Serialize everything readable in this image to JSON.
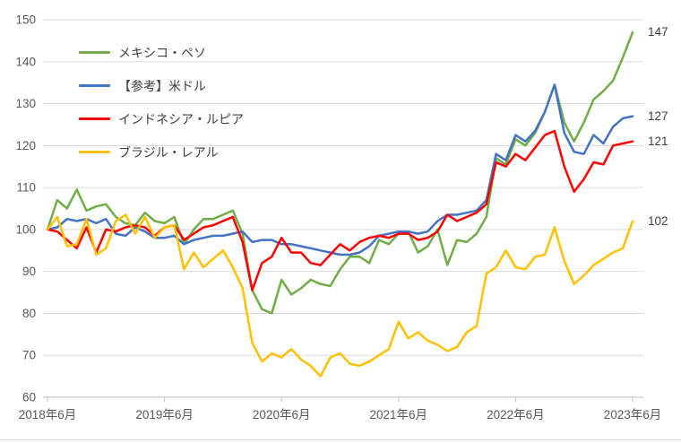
{
  "chart_data": {
    "type": "line",
    "description": "Currency index line chart (indexed to 100 at 2018-06), monthly points from 2018-06 to 2023-06",
    "x_tick_labels": [
      "2018年6月",
      "2019年6月",
      "2020年6月",
      "2021年6月",
      "2022年6月",
      "2023年6月"
    ],
    "x_interval": "monthly",
    "points_per_series": 61,
    "y_ticks": [
      60,
      70,
      80,
      90,
      100,
      110,
      120,
      130,
      140,
      150
    ],
    "ylim": [
      60,
      150
    ],
    "grid": "horizontal",
    "legend_position": "top-left-inside",
    "series": [
      {
        "name": "メキシコ・ペソ",
        "color": "#70AD47",
        "end_label": "147",
        "values": [
          100,
          107,
          105,
          109.5,
          104.5,
          105.5,
          106,
          103,
          101.5,
          101,
          104,
          102,
          101.5,
          103,
          96.5,
          100,
          102.5,
          102.5,
          103.5,
          104.5,
          99,
          85.5,
          81,
          80,
          88,
          84.5,
          86,
          88,
          87,
          86.5,
          90.5,
          93.5,
          93.5,
          92,
          97.5,
          96.5,
          99,
          99.5,
          94.5,
          96,
          100,
          91.5,
          97.5,
          97,
          99,
          103,
          117,
          115.5,
          121.5,
          120,
          123,
          128,
          134.5,
          125.5,
          121,
          125.5,
          131,
          133,
          135.5,
          141,
          147
        ]
      },
      {
        "name": "【参考】米ドル",
        "color": "#4472C4",
        "end_label": "127",
        "values": [
          100,
          100.5,
          102.5,
          102,
          102.5,
          101.5,
          102.5,
          99,
          98.5,
          100.5,
          99.5,
          98,
          98,
          98.5,
          96.5,
          97.5,
          98,
          98.5,
          98.5,
          99,
          99.5,
          97,
          97.5,
          97.5,
          96.5,
          96.5,
          96,
          95.5,
          95,
          94.5,
          94,
          94,
          94.5,
          96,
          98.5,
          99,
          99.5,
          99.5,
          99,
          99.5,
          102,
          103.5,
          103.5,
          104,
          104.5,
          107,
          118,
          116.5,
          122.5,
          121,
          123.5,
          128,
          134.5,
          123,
          118.5,
          118,
          122.5,
          120.5,
          124.5,
          126.5,
          127
        ]
      },
      {
        "name": "インドネシア・ルピア",
        "color": "#FF0000",
        "end_label": "121",
        "values": [
          100,
          99.5,
          97.5,
          95.5,
          100.5,
          94.5,
          100,
          99.5,
          100.5,
          101,
          100.5,
          98.5,
          100.5,
          101,
          97.5,
          99,
          100.5,
          101,
          102,
          103,
          97,
          85.5,
          92,
          93.5,
          98,
          94.5,
          94.5,
          92,
          91.5,
          94,
          96.5,
          95,
          97,
          98,
          98.5,
          98,
          99,
          99,
          97.5,
          98,
          99.5,
          103.5,
          102,
          103,
          104,
          106,
          116,
          115,
          118,
          116.5,
          119.5,
          122.5,
          123.5,
          115,
          109,
          112,
          116,
          115.5,
          120,
          120.5,
          121
        ]
      },
      {
        "name": "ブラジル・レアル",
        "color": "#FFC000",
        "end_label": "102",
        "values": [
          100,
          103,
          96,
          96.5,
          102.5,
          94,
          95.5,
          102,
          103.5,
          99,
          103,
          98,
          100.5,
          101,
          90.5,
          94.5,
          91,
          93,
          95,
          91,
          86,
          73,
          68.5,
          70.5,
          69.5,
          71.5,
          69,
          67.5,
          65,
          69.5,
          70.5,
          68,
          67.5,
          68.5,
          70,
          71.5,
          78,
          74,
          75.5,
          73.5,
          72.5,
          71,
          72,
          75.5,
          77,
          89.5,
          91,
          95,
          91,
          90.5,
          93.5,
          94,
          100.5,
          92.5,
          87,
          89,
          91.5,
          93,
          94.5,
          95.5,
          102
        ]
      }
    ],
    "colors": {
      "gridline": "#D9D9D9",
      "axis_line": "#BFBFBF",
      "tick_text": "#595959",
      "end_label_text": "#404040"
    }
  }
}
